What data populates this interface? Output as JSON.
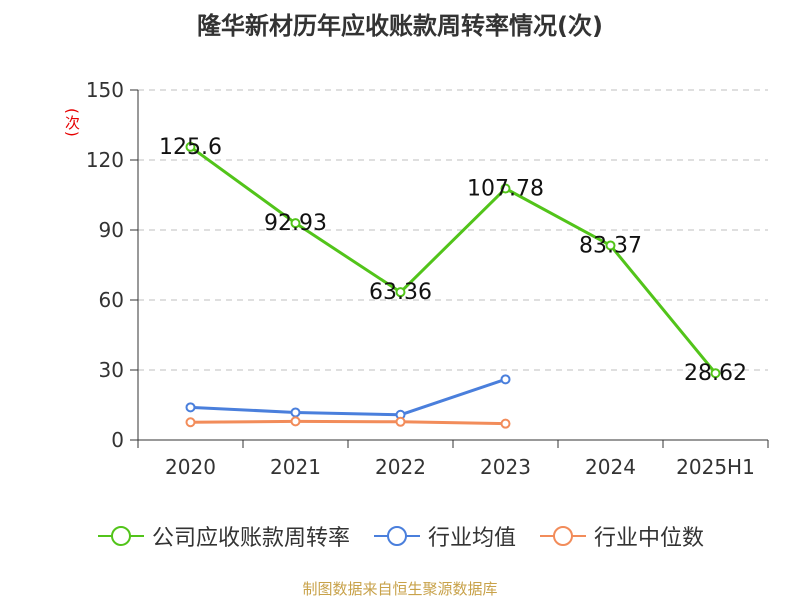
{
  "chart_data": {
    "type": "line",
    "title": "隆华新材历年应收账款周转率情况(次)",
    "ylabel": "(次)",
    "categories": [
      "2020",
      "2021",
      "2022",
      "2023",
      "2024",
      "2025H1"
    ],
    "ylim": [
      0,
      150
    ],
    "yticks": [
      0,
      30,
      60,
      90,
      120,
      150
    ],
    "grid": true,
    "legend_position": "bottom",
    "series": [
      {
        "name": "公司应收账款周转率",
        "color": "#52c41a",
        "values": [
          125.6,
          92.93,
          63.36,
          107.78,
          83.37,
          28.62
        ],
        "labels": [
          "125.6",
          "92.93",
          "63.36",
          "107.78",
          "83.37",
          "28.62"
        ]
      },
      {
        "name": "行业均值",
        "color": "#4a7fdc",
        "values": [
          14.0,
          11.8,
          10.8,
          26.0,
          null,
          null
        ]
      },
      {
        "name": "行业中位数",
        "color": "#f28c5a",
        "values": [
          7.6,
          8.0,
          7.8,
          7.0,
          null,
          null
        ]
      }
    ]
  },
  "source": "制图数据来自恒生聚源数据库"
}
